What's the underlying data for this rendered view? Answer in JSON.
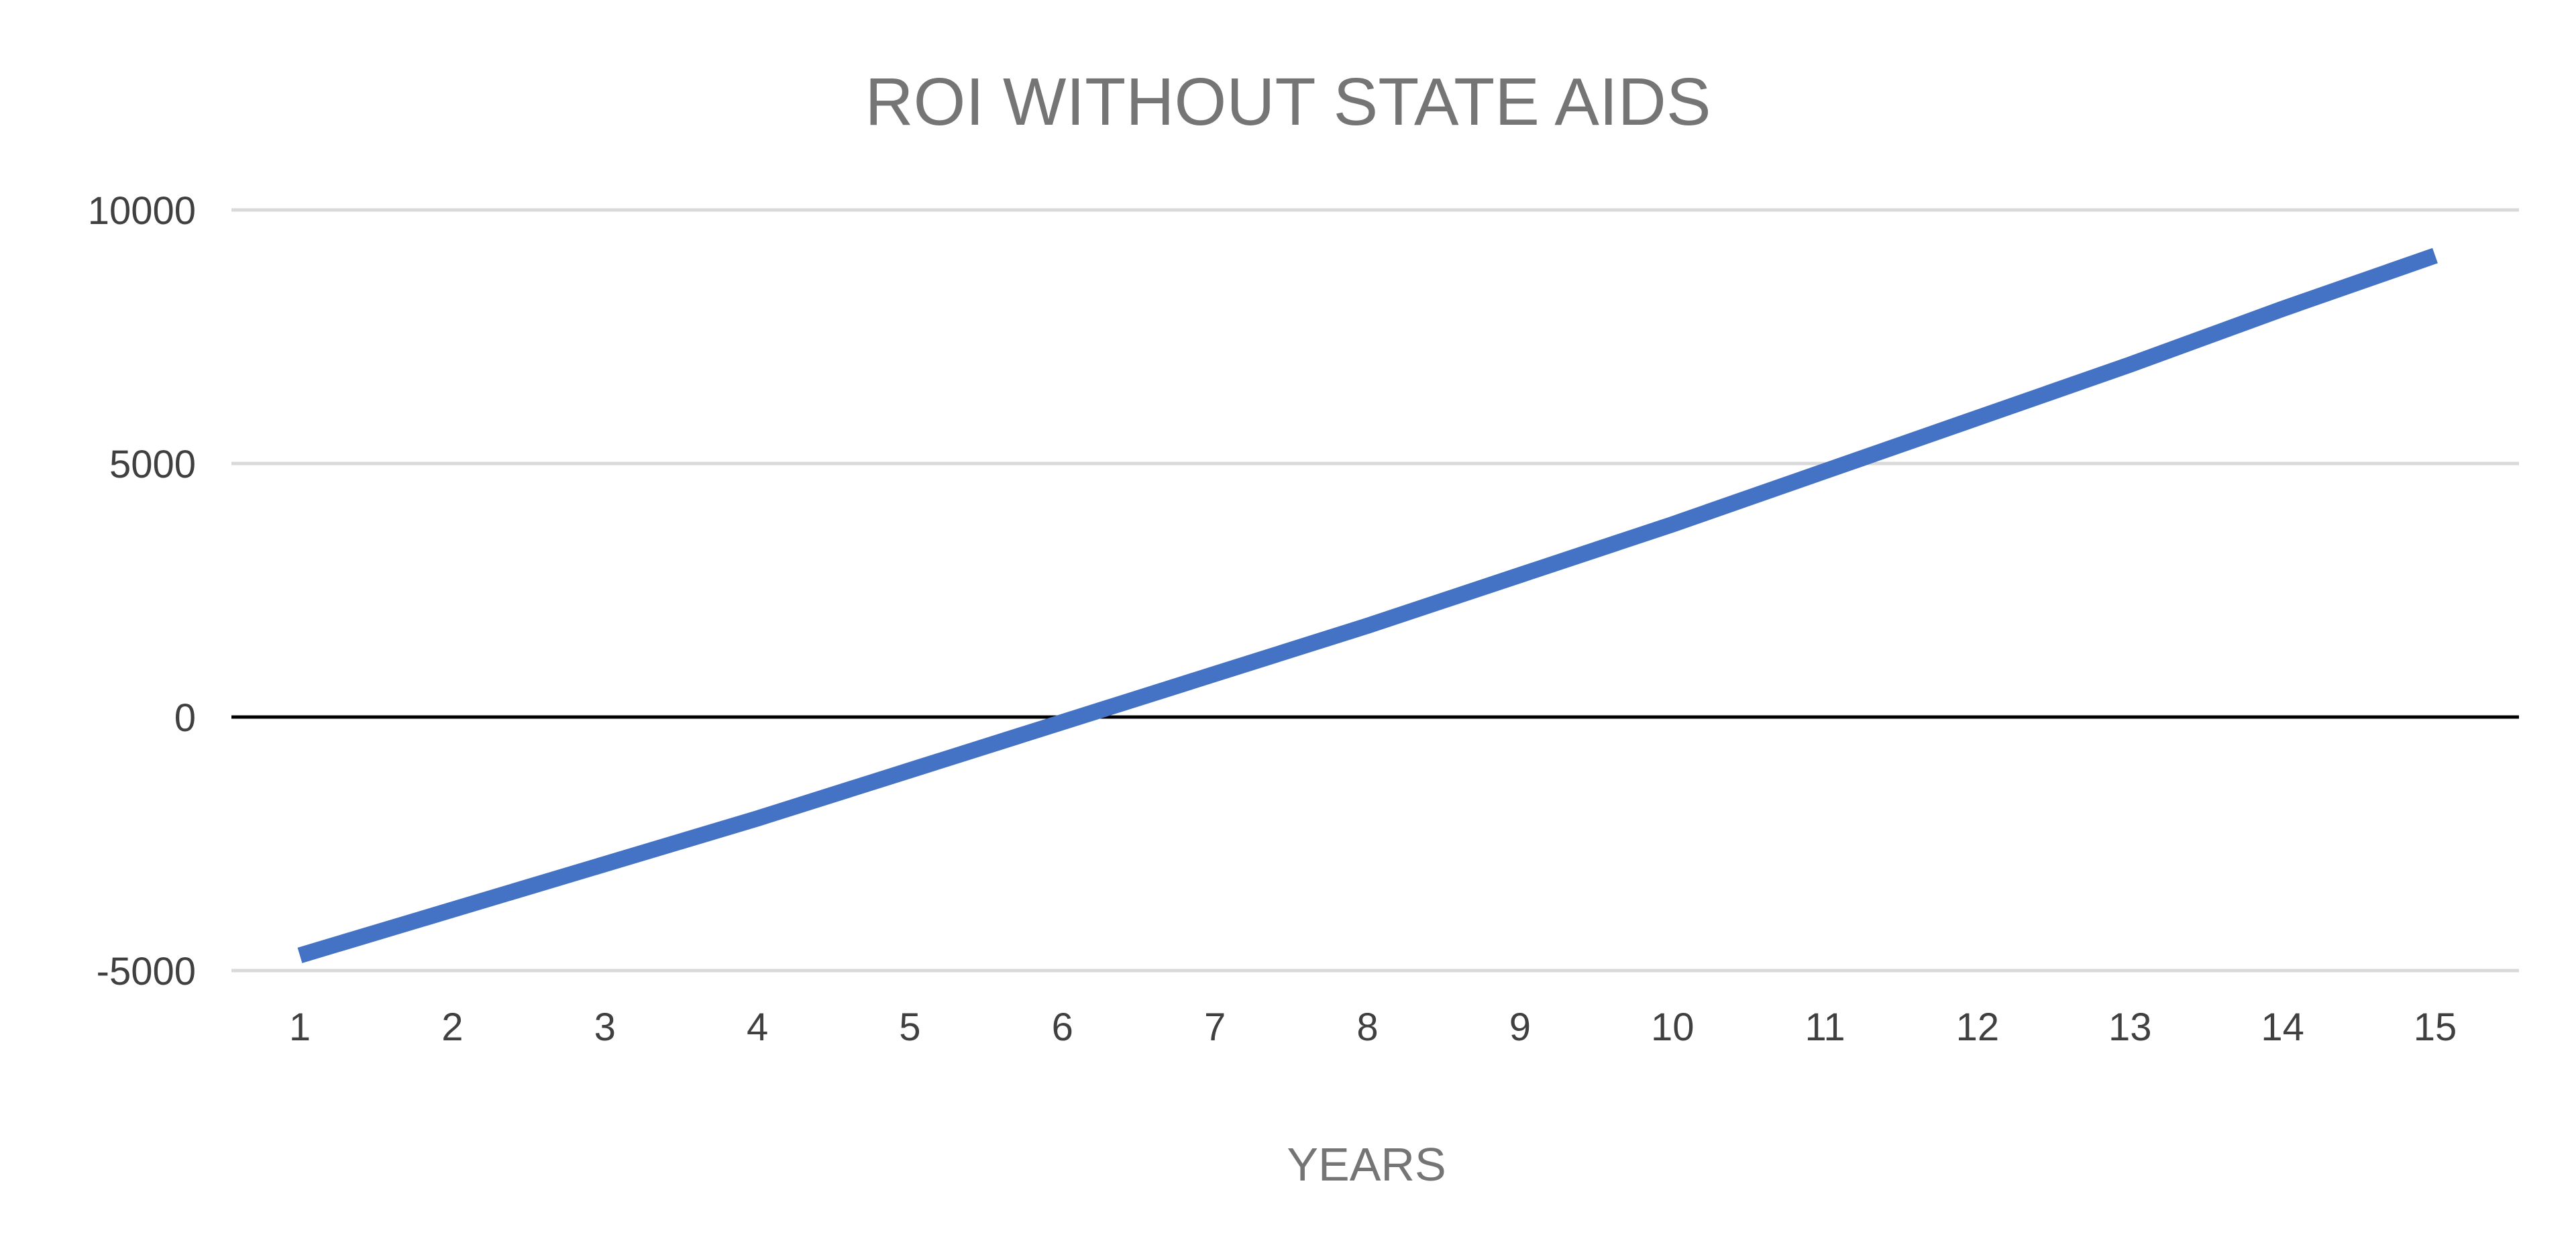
{
  "chart_data": {
    "type": "line",
    "title": "ROI WITHOUT STATE AIDS",
    "xlabel": "YEARS",
    "ylabel": "",
    "categories": [
      "1",
      "2",
      "3",
      "4",
      "5",
      "6",
      "7",
      "8",
      "9",
      "10",
      "11",
      "12",
      "13",
      "14",
      "15"
    ],
    "series": [
      {
        "values": [
          -4700,
          -3800,
          -2900,
          -2000,
          -1050,
          -100,
          850,
          1800,
          2800,
          3800,
          4850,
          5900,
          6950,
          8050,
          9100
        ]
      }
    ],
    "ylim": [
      -5000,
      10000
    ],
    "yticks": [
      "10000",
      "5000",
      "0",
      "-5000"
    ],
    "grid": true,
    "legend": "none",
    "colors": {
      "series": "#4472C4",
      "gridline": "#D9D9D9",
      "zero_line": "#000000",
      "title": "#757575",
      "tick_label": "#404040"
    }
  }
}
